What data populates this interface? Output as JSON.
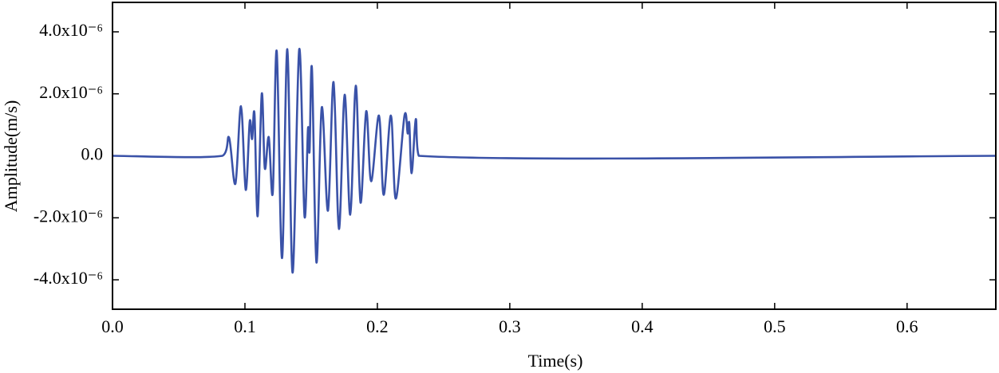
{
  "chart_data": {
    "type": "line",
    "x_label": "Time(s)",
    "y_label": "Amplitude(m/s)",
    "xlim": [
      0,
      0.667
    ],
    "ylim": [
      -4.95e-06,
      4.95e-06
    ],
    "xticks": [
      {
        "value": 0,
        "label": "0.0"
      },
      0.1,
      0.2,
      0.3,
      0.4,
      0.5,
      0.6
    ],
    "yticks": [
      {
        "value": -4e-06,
        "label": "-4.0x10⁻⁶"
      },
      {
        "value": -2e-06,
        "label": "-2.0x10⁻⁶"
      },
      {
        "value": 0,
        "label": "0.0"
      },
      {
        "value": 2e-06,
        "label": "2.0x10⁻⁶"
      },
      {
        "value": 4e-06,
        "label": "4.0x10⁻⁶"
      }
    ],
    "series": [
      {
        "color": "#3a52a8",
        "x": [
          0,
          0.083,
          0.088,
          0.0928,
          0.097,
          0.1006,
          0.1036,
          0.1054,
          0.1072,
          0.1096,
          0.1127,
          0.115,
          0.118,
          0.121,
          0.124,
          0.128,
          0.132,
          0.136,
          0.141,
          0.145,
          0.1476,
          0.1488,
          0.1506,
          0.154,
          0.158,
          0.1627,
          0.1669,
          0.171,
          0.1753,
          0.1795,
          0.1837,
          0.1873,
          0.1916,
          0.1953,
          0.2012,
          0.2048,
          0.2102,
          0.2139,
          0.2205,
          0.2229,
          0.2241,
          0.2259,
          0.229,
          0.2313,
          0.667
        ],
        "values": [
          0,
          0,
          5.9e-07,
          -9e-07,
          1.6e-06,
          -1.1e-06,
          1.1e-06,
          5.4e-07,
          1.35e-06,
          -1.95e-06,
          2e-06,
          -4e-07,
          6e-07,
          -1.2e-06,
          3.38e-06,
          -3.3e-06,
          3.44e-06,
          -3.77e-06,
          3.44e-06,
          -1.95e-06,
          8.7e-07,
          1.5e-07,
          2.82e-06,
          -3.44e-06,
          1.56e-06,
          -1.77e-06,
          2.38e-06,
          -2.36e-06,
          1.97e-06,
          -1.9e-06,
          2.26e-06,
          -1.51e-06,
          1.44e-06,
          -8.2e-07,
          1.3e-06,
          -1.26e-06,
          1.3e-06,
          -1.38e-06,
          1.3e-06,
          7.2e-07,
          1.05e-06,
          -5.6e-07,
          1.18e-06,
          0,
          0
        ]
      }
    ]
  }
}
